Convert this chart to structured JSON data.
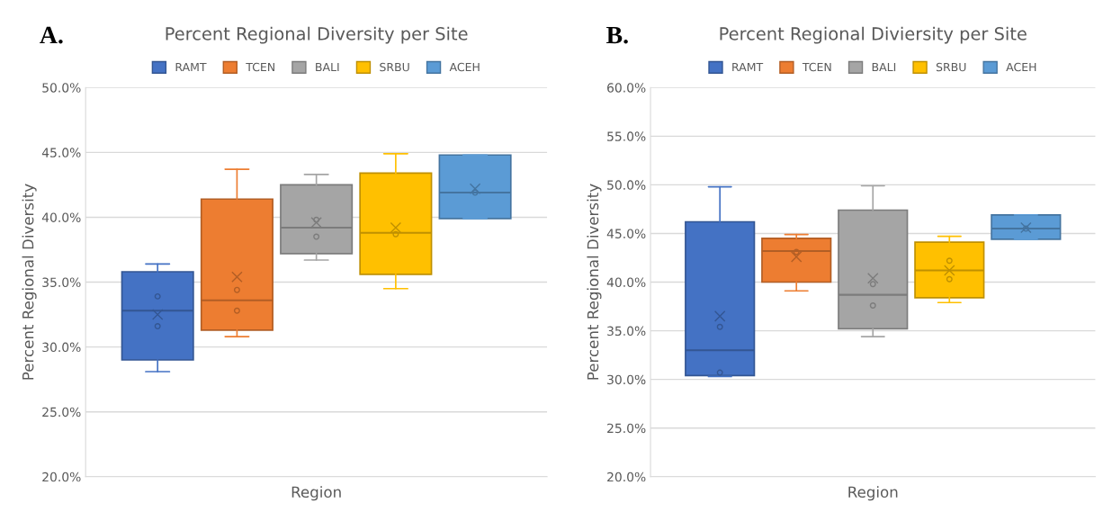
{
  "chart_data": [
    {
      "type": "box",
      "title": "Percent Regional Diversity per Site",
      "xlabel": "Region",
      "ylabel": "Percent Regional Diversity",
      "annotations": [
        "A."
      ],
      "categories": [
        null
      ],
      "series": [
        {
          "name": "RAMT",
          "color": "#4472c4",
          "boxes": [
            {
              "low": 28.1,
              "q1": 29.0,
              "median": 32.8,
              "q3": 35.8,
              "high": 36.4,
              "mean": 32.5,
              "outliers": [
                33.9,
                31.6
              ]
            }
          ]
        },
        {
          "name": "TCEN",
          "color": "#ed7d31",
          "boxes": [
            {
              "low": 30.8,
              "q1": 31.3,
              "median": 33.6,
              "q3": 41.4,
              "high": 43.7,
              "mean": 35.4,
              "outliers": [
                34.4,
                32.8
              ]
            }
          ]
        },
        {
          "name": "BALI",
          "color": "#a5a5a5",
          "boxes": [
            {
              "low": 36.7,
              "q1": 37.2,
              "median": 39.2,
              "q3": 42.5,
              "high": 43.3,
              "mean": 39.6,
              "outliers": [
                39.8,
                38.5
              ]
            }
          ]
        },
        {
          "name": "SRBU",
          "color": "#ffc000",
          "boxes": [
            {
              "low": 34.5,
              "q1": 35.6,
              "median": 38.8,
              "q3": 43.4,
              "high": 44.9,
              "mean": 39.2,
              "outliers": [
                38.7
              ]
            }
          ]
        },
        {
          "name": "ACEH",
          "color": "#5b9bd5",
          "boxes": [
            {
              "low": 39.9,
              "q1": 39.9,
              "median": 41.9,
              "q3": 44.8,
              "high": 44.8,
              "mean": 42.2,
              "outliers": [
                41.9
              ]
            }
          ]
        }
      ],
      "ylim": [
        20,
        50
      ],
      "yticks": [
        {
          "value": 20,
          "label": "20.0%"
        },
        {
          "value": 25,
          "label": "25.0%"
        },
        {
          "value": 30,
          "label": "30.0%"
        },
        {
          "value": 35,
          "label": "35.0%"
        },
        {
          "value": 40,
          "label": "40.0%"
        },
        {
          "value": 45,
          "label": "45.0%"
        },
        {
          "value": 50,
          "label": "50.0%"
        }
      ],
      "grid": "y",
      "legend": "top"
    },
    {
      "type": "box",
      "title": "Percent Regional Diviersity per Site",
      "xlabel": "Region",
      "ylabel": "Percent Regional Diversity",
      "annotations": [
        "B."
      ],
      "categories": [
        null
      ],
      "series": [
        {
          "name": "RAMT",
          "color": "#4472c4",
          "boxes": [
            {
              "low": 30.3,
              "q1": 30.4,
              "median": 33.0,
              "q3": 46.2,
              "high": 49.8,
              "mean": 36.5,
              "outliers": [
                35.4,
                30.7
              ]
            }
          ]
        },
        {
          "name": "TCEN",
          "color": "#ed7d31",
          "boxes": [
            {
              "low": 39.1,
              "q1": 40.0,
              "median": 43.2,
              "q3": 44.5,
              "high": 44.9,
              "mean": 42.6,
              "outliers": [
                43.1
              ]
            }
          ]
        },
        {
          "name": "BALI",
          "color": "#a5a5a5",
          "boxes": [
            {
              "low": 34.4,
              "q1": 35.2,
              "median": 38.7,
              "q3": 47.4,
              "high": 49.9,
              "mean": 40.4,
              "outliers": [
                39.8,
                37.6
              ]
            }
          ]
        },
        {
          "name": "SRBU",
          "color": "#ffc000",
          "boxes": [
            {
              "low": 37.9,
              "q1": 38.4,
              "median": 41.2,
              "q3": 44.1,
              "high": 44.7,
              "mean": 41.2,
              "outliers": [
                42.2,
                40.3
              ]
            }
          ]
        },
        {
          "name": "ACEH",
          "color": "#5b9bd5",
          "boxes": [
            {
              "low": 44.4,
              "q1": 44.4,
              "median": 45.5,
              "q3": 46.9,
              "high": 46.9,
              "mean": 45.6,
              "outliers": [
                45.5
              ]
            }
          ]
        }
      ],
      "ylim": [
        20,
        60
      ],
      "yticks": [
        {
          "value": 20,
          "label": "20.0%"
        },
        {
          "value": 25,
          "label": "25.0%"
        },
        {
          "value": 30,
          "label": "30.0%"
        },
        {
          "value": 35,
          "label": "35.0%"
        },
        {
          "value": 40,
          "label": "40.0%"
        },
        {
          "value": 45,
          "label": "45.0%"
        },
        {
          "value": 50,
          "label": "50.0%"
        },
        {
          "value": 55,
          "label": "55.0%"
        },
        {
          "value": 60,
          "label": "60.0%"
        }
      ],
      "grid": "y",
      "legend": "top"
    }
  ]
}
